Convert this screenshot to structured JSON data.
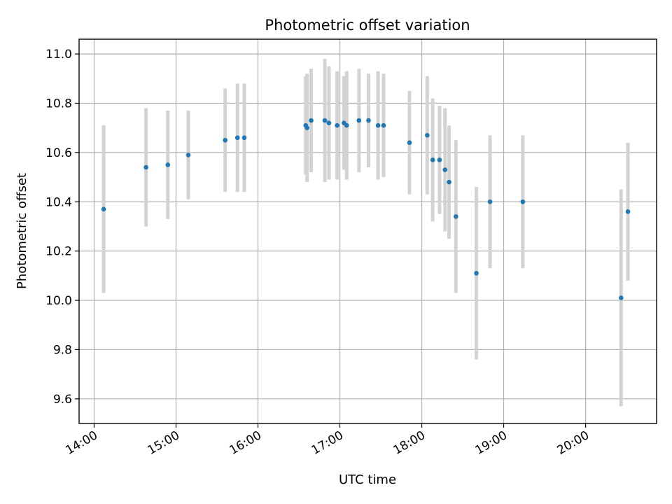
{
  "chart_data": {
    "type": "scatter",
    "title": "Photometric offset variation",
    "xlabel": "UTC time",
    "ylabel": "Photometric offset",
    "x_unit": "UTC hours",
    "xlim": [
      "13:49",
      "20:52"
    ],
    "ylim": [
      9.5,
      11.06
    ],
    "grid": true,
    "x_ticks": [
      "14:00",
      "15:00",
      "16:00",
      "17:00",
      "18:00",
      "19:00",
      "20:00"
    ],
    "y_ticks": [
      "9.6",
      "9.8",
      "10.0",
      "10.2",
      "10.4",
      "10.6",
      "10.8",
      "11.0"
    ],
    "colors": {
      "points": "#1f77b4",
      "errorbars": "#d3d3d3",
      "grid": "#b0b0b0"
    },
    "series": [
      {
        "points": [
          {
            "x": "14:07",
            "y": 10.37,
            "yerr": 0.34
          },
          {
            "x": "14:38",
            "y": 10.54,
            "yerr": 0.24
          },
          {
            "x": "14:54",
            "y": 10.55,
            "yerr": 0.22
          },
          {
            "x": "15:09",
            "y": 10.59,
            "yerr": 0.18
          },
          {
            "x": "15:36",
            "y": 10.65,
            "yerr": 0.21
          },
          {
            "x": "15:45",
            "y": 10.66,
            "yerr": 0.22
          },
          {
            "x": "15:50",
            "y": 10.66,
            "yerr": 0.22
          },
          {
            "x": "16:35",
            "y": 10.71,
            "yerr": 0.2
          },
          {
            "x": "16:36",
            "y": 10.7,
            "yerr": 0.22
          },
          {
            "x": "16:39",
            "y": 10.73,
            "yerr": 0.21
          },
          {
            "x": "16:49",
            "y": 10.73,
            "yerr": 0.25
          },
          {
            "x": "16:52",
            "y": 10.72,
            "yerr": 0.23
          },
          {
            "x": "16:58",
            "y": 10.71,
            "yerr": 0.22
          },
          {
            "x": "17:03",
            "y": 10.72,
            "yerr": 0.19
          },
          {
            "x": "17:05",
            "y": 10.71,
            "yerr": 0.22
          },
          {
            "x": "17:14",
            "y": 10.73,
            "yerr": 0.21
          },
          {
            "x": "17:21",
            "y": 10.73,
            "yerr": 0.19
          },
          {
            "x": "17:28",
            "y": 10.71,
            "yerr": 0.22
          },
          {
            "x": "17:32",
            "y": 10.71,
            "yerr": 0.21
          },
          {
            "x": "17:51",
            "y": 10.64,
            "yerr": 0.21
          },
          {
            "x": "18:04",
            "y": 10.67,
            "yerr": 0.24
          },
          {
            "x": "18:08",
            "y": 10.57,
            "yerr": 0.25
          },
          {
            "x": "18:13",
            "y": 10.57,
            "yerr": 0.22
          },
          {
            "x": "18:17",
            "y": 10.53,
            "yerr": 0.25
          },
          {
            "x": "18:20",
            "y": 10.48,
            "yerr": 0.23
          },
          {
            "x": "18:25",
            "y": 10.34,
            "yerr": 0.31
          },
          {
            "x": "18:40",
            "y": 10.11,
            "yerr": 0.35
          },
          {
            "x": "18:50",
            "y": 10.4,
            "yerr": 0.27
          },
          {
            "x": "19:14",
            "y": 10.4,
            "yerr": 0.27
          },
          {
            "x": "20:26",
            "y": 10.01,
            "yerr": 0.44
          },
          {
            "x": "20:31",
            "y": 10.36,
            "yerr": 0.28
          }
        ]
      }
    ]
  }
}
